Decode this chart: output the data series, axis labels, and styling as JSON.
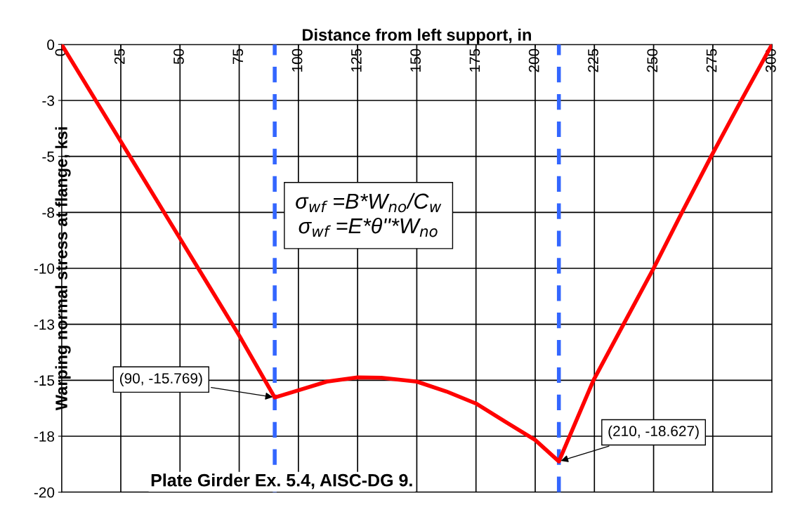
{
  "chart_data": {
    "type": "line",
    "xlabel": "Distance from left support, in",
    "ylabel": "Warping normal stress at flange, ksi",
    "series": [
      {
        "color": "#ff0000",
        "x": [
          0,
          15,
          30,
          45,
          60,
          75,
          90,
          100,
          112,
          125,
          135,
          150,
          162.5,
          175,
          187.5,
          200,
          210,
          224.6,
          237.3,
          250,
          262,
          274.3,
          287,
          300
        ],
        "values": [
          0,
          -2.6,
          -5.2,
          -7.8,
          -10.4,
          -13.0,
          -15.769,
          -15.45,
          -15.06,
          -14.87,
          -14.89,
          -15.06,
          -15.5,
          -16.04,
          -16.86,
          -17.67,
          -18.627,
          -15,
          -12.5,
          -10,
          -7.5,
          -5,
          -2.5,
          0
        ]
      }
    ],
    "xlim": [
      0,
      300
    ],
    "xticks": [
      0,
      25,
      50,
      75,
      100,
      125,
      150,
      175,
      200,
      225,
      250,
      275,
      300
    ],
    "ylim": [
      -20,
      0
    ],
    "yticks": [
      0,
      {
        "value": -2.5,
        "label": "-3"
      },
      -5,
      {
        "value": -7.5,
        "label": "-8"
      },
      -10,
      {
        "value": -12.5,
        "label": "-13"
      },
      -15,
      {
        "value": -17.5,
        "label": "-18"
      },
      -20
    ],
    "grid": true,
    "marker": "none",
    "line_style": "solid",
    "ref_lines": [
      {
        "axis": "x",
        "value": 90,
        "color": "#3366ff",
        "line_style": "dashed"
      },
      {
        "axis": "x",
        "value": 210,
        "color": "#3366ff",
        "line_style": "dashed"
      }
    ],
    "annotations": [
      {
        "text": "(90, -15.769)",
        "x": 90,
        "y": -15.769
      },
      {
        "text": "(210, -18.627)",
        "x": 210,
        "y": -18.627
      },
      "σ$_{wf}$ =B*W$_{no}$/C$_{w}$\nσ$_{wf}$ =E*θ''*W$_{no}$",
      "Plate Girder Ex. 5.4, AISC-DG 9."
    ]
  }
}
